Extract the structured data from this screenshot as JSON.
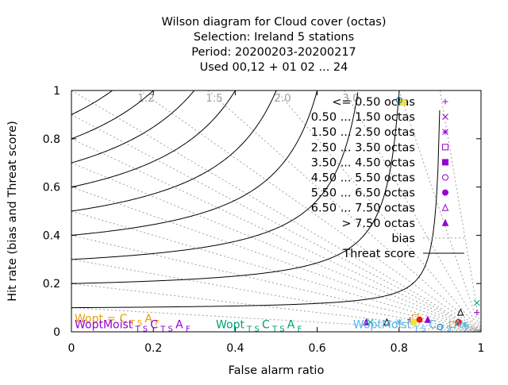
{
  "chart_data": {
    "type": "scatter",
    "title_lines": [
      "Wilson diagram  for Cloud cover (octas)",
      "Selection: Ireland      5 stations",
      "Period: 20200203-20200217",
      "Used  00,12  + 01 02 ... 24"
    ],
    "xlabel": "False alarm ratio",
    "ylabel": "Hit rate (bias and Threat score)",
    "xlim": [
      0,
      1
    ],
    "ylim": [
      0,
      1
    ],
    "x_ticks": [
      "0",
      "0.2",
      "0.4",
      "0.6",
      "0.8",
      "1"
    ],
    "y_ticks": [
      "0",
      "0.2",
      "0.4",
      "0.6",
      "0.8",
      "1"
    ],
    "bias_lines": [
      1.2,
      1.5,
      2.0,
      3.0
    ],
    "bias_labels": [
      "1.2",
      "1.5",
      "2.0",
      "3.0"
    ],
    "threat_scores": [
      0.1,
      0.2,
      0.3,
      0.4,
      0.5,
      0.6,
      0.7,
      0.8,
      0.9
    ],
    "legend_position": "top-right",
    "series": [
      {
        "name": "<= 0.50 octas",
        "marker": "plus",
        "color": "#9400d3",
        "points": [
          {
            "x": 0.827,
            "y": 0.05
          },
          {
            "x": 0.99,
            "y": 0.08
          }
        ]
      },
      {
        "name": "0.50 ... 1.50 octas",
        "marker": "cross",
        "color": "#009e73",
        "points": [
          {
            "x": 0.73,
            "y": 0.04
          },
          {
            "x": 0.99,
            "y": 0.12
          }
        ]
      },
      {
        "name": "1.50 ... 2.50 octas",
        "marker": "star",
        "color": "#56b4e9",
        "points": [
          {
            "x": 0.8,
            "y": 0.04
          },
          {
            "x": 0.96,
            "y": 0.03
          }
        ]
      },
      {
        "name": "2.50 ... 3.50 octas",
        "marker": "box",
        "color": "#e69f00",
        "points": [
          {
            "x": 0.84,
            "y": 0.06
          },
          {
            "x": 0.93,
            "y": 0.03
          }
        ]
      },
      {
        "name": "3.50 ... 4.50 octas",
        "marker": "boxfill",
        "color": "#f0e442",
        "points": [
          {
            "x": 0.81,
            "y": 0.95
          },
          {
            "x": 0.835,
            "y": 0.04
          }
        ]
      },
      {
        "name": "4.50 ... 5.50 octas",
        "marker": "circle",
        "color": "#0072b2",
        "points": [
          {
            "x": 0.8,
            "y": 0.96
          },
          {
            "x": 0.9,
            "y": 0.02
          }
        ]
      },
      {
        "name": "5.50 ... 6.50 octas",
        "marker": "circlefill",
        "color": "#e51e10",
        "points": [
          {
            "x": 0.85,
            "y": 0.05
          },
          {
            "x": 0.945,
            "y": 0.04
          }
        ]
      },
      {
        "name": "6.50 ... 7.50 octas",
        "marker": "triangle",
        "color": "#000000",
        "points": [
          {
            "x": 0.77,
            "y": 0.04
          },
          {
            "x": 0.95,
            "y": 0.08
          }
        ]
      },
      {
        "name": "> 7.50 octas",
        "marker": "trianglefill",
        "color": "#9400d3",
        "points": [
          {
            "x": 0.72,
            "y": 0.04
          },
          {
            "x": 0.87,
            "y": 0.05
          }
        ]
      }
    ],
    "extra_legend": [
      {
        "name": "bias",
        "style": "dotted",
        "color": "#a0a0a0"
      },
      {
        "name": "Threat score",
        "style": "solid",
        "color": "#000000"
      }
    ],
    "wopt_labels": [
      {
        "main": "Wopt",
        "middle": " = C",
        "sub1": "T S",
        "tail": "A",
        "sub2": "F",
        "color": "#e69f00",
        "x": 0.0,
        "y": 0.04
      },
      {
        "main": "WoptMoist",
        "middle": "",
        "sub1": "T S",
        "mid2": "C",
        "sub3": "T S",
        "tail": "A",
        "sub2": "F",
        "color": "#9400d3",
        "x": 0.0,
        "y": 0.015
      },
      {
        "main": "Wopt",
        "middle": "",
        "sub1": "T S",
        "mid2": "C",
        "sub3": "T S",
        "tail": "A",
        "sub2": "F",
        "color": "#009e73",
        "x": 0.345,
        "y": 0.015
      },
      {
        "main": "WoptMoist",
        "middle": "",
        "sub1": "T S",
        "mid2": "C",
        "sub3": "T S",
        "tail": "A",
        "sub2": "F",
        "color": "#56b4e9",
        "x": 0.68,
        "y": 0.015
      }
    ]
  }
}
